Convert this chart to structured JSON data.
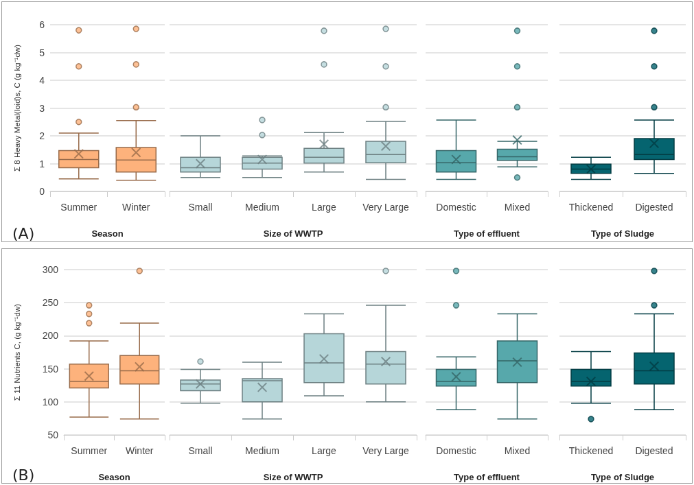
{
  "chart_data": [
    {
      "type": "box",
      "ylabel": "Σ 8 Heavy Metal(loid)s, C (g kg⁻¹dw)",
      "xlabel": "Season",
      "annotations": [
        "(A)"
      ],
      "categories": [
        "Summer",
        "Winter"
      ],
      "color": "#fdb27c",
      "ylim": [
        0,
        6
      ],
      "yticks": [
        0,
        1,
        2,
        3,
        4,
        5,
        6
      ],
      "grid": "y",
      "marker": "circle",
      "boxes": [
        {
          "low": 0.45,
          "q1": 0.85,
          "median": 1.15,
          "q3": 1.47,
          "high": 2.1,
          "mean": 1.35,
          "outliers": [
            2.5,
            4.5,
            5.8
          ]
        },
        {
          "low": 0.4,
          "q1": 0.7,
          "median": 1.13,
          "q3": 1.58,
          "high": 2.55,
          "mean": 1.4,
          "outliers": [
            3.03,
            4.57,
            5.85
          ]
        }
      ]
    },
    {
      "type": "box",
      "xlabel": "Size of WWTP",
      "categories": [
        "Small",
        "Medium",
        "Large",
        "Very Large"
      ],
      "color": "#b6d6d9",
      "ylim": [
        0,
        6
      ],
      "yticks": [
        0,
        1,
        2,
        3,
        4,
        5,
        6
      ],
      "grid": "y",
      "marker": "circle",
      "tick_labels": "x",
      "boxes": [
        {
          "low": 0.5,
          "q1": 0.7,
          "median": 0.85,
          "q3": 1.23,
          "high": 2.0,
          "mean": 1.0
        },
        {
          "low": 0.5,
          "q1": 0.8,
          "median": 1.02,
          "q3": 1.23,
          "high": 1.28,
          "mean": 1.15,
          "outliers": [
            2.03,
            2.57
          ]
        },
        {
          "low": 0.7,
          "q1": 1.02,
          "median": 1.23,
          "q3": 1.55,
          "high": 2.12,
          "mean": 1.7,
          "outliers": [
            4.57,
            5.78
          ]
        },
        {
          "low": 0.43,
          "q1": 1.03,
          "median": 1.33,
          "q3": 1.8,
          "high": 2.52,
          "mean": 1.63,
          "outliers": [
            3.03,
            4.5,
            5.85
          ]
        }
      ]
    },
    {
      "type": "box",
      "xlabel": "Type of effluent",
      "categories": [
        "Domestic",
        "Mixed"
      ],
      "color": "#57a8ab",
      "ylim": [
        0,
        6
      ],
      "yticks": [
        0,
        1,
        2,
        3,
        4,
        5,
        6
      ],
      "grid": "y",
      "marker": "circle",
      "tick_labels": "x",
      "boxes": [
        {
          "low": 0.43,
          "q1": 0.7,
          "median": 1.03,
          "q3": 1.47,
          "high": 2.57,
          "mean": 1.15
        },
        {
          "low": 0.88,
          "q1": 1.12,
          "median": 1.25,
          "q3": 1.52,
          "high": 1.8,
          "mean": 1.85,
          "outliers": [
            0.5,
            3.03,
            4.5,
            5.78
          ]
        }
      ]
    },
    {
      "type": "box",
      "xlabel": "Type of Sludge",
      "categories": [
        "Thickened",
        "Digested"
      ],
      "color": "#05646f",
      "ylim": [
        0,
        6
      ],
      "yticks": [
        0,
        1,
        2,
        3,
        4,
        5,
        6
      ],
      "grid": "y",
      "marker": "circle",
      "tick_labels": "x",
      "boxes": [
        {
          "low": 0.43,
          "q1": 0.65,
          "median": 0.8,
          "q3": 0.98,
          "high": 1.23,
          "mean": 0.8
        },
        {
          "low": 0.65,
          "q1": 1.15,
          "median": 1.33,
          "q3": 1.9,
          "high": 2.57,
          "mean": 1.73,
          "outliers": [
            3.03,
            4.5,
            5.78
          ]
        }
      ]
    },
    {
      "type": "box",
      "ylabel": "Σ 11 Nutrients C, (g kg⁻¹dw)",
      "xlabel": "Season",
      "annotations": [
        "(B)"
      ],
      "categories": [
        "Summer",
        "Winter"
      ],
      "color": "#fdb27c",
      "ylim": [
        50,
        300
      ],
      "yticks": [
        50,
        100,
        150,
        200,
        250,
        300
      ],
      "grid": "y",
      "marker": "circle",
      "boxes": [
        {
          "low": 77,
          "q1": 121,
          "median": 131,
          "q3": 157,
          "high": 192,
          "mean": 139,
          "outliers": [
            219,
            233,
            246
          ]
        },
        {
          "low": 74,
          "q1": 127,
          "median": 147,
          "q3": 170,
          "high": 219,
          "mean": 153,
          "outliers": [
            298
          ]
        }
      ]
    },
    {
      "type": "box",
      "xlabel": "Size of WWTP",
      "categories": [
        "Small",
        "Medium",
        "Large",
        "Very Large"
      ],
      "color": "#b6d6d9",
      "ylim": [
        50,
        300
      ],
      "yticks": [
        50,
        100,
        150,
        200,
        250,
        300
      ],
      "grid": "y",
      "marker": "circle",
      "tick_labels": "x",
      "boxes": [
        {
          "low": 98,
          "q1": 117,
          "median": 127,
          "q3": 133,
          "high": 149,
          "mean": 127,
          "outliers": [
            161
          ]
        },
        {
          "low": 74,
          "q1": 100,
          "median": 132,
          "q3": 135,
          "high": 160,
          "mean": 122
        },
        {
          "low": 109,
          "q1": 129,
          "median": 159,
          "q3": 203,
          "high": 233,
          "mean": 165
        },
        {
          "low": 100,
          "q1": 127,
          "median": 157,
          "q3": 176,
          "high": 246,
          "mean": 161,
          "outliers": [
            298
          ]
        }
      ]
    },
    {
      "type": "box",
      "xlabel": "Type of effluent",
      "categories": [
        "Domestic",
        "Mixed"
      ],
      "color": "#57a8ab",
      "ylim": [
        50,
        300
      ],
      "yticks": [
        50,
        100,
        150,
        200,
        250,
        300
      ],
      "grid": "y",
      "marker": "circle",
      "tick_labels": "x",
      "boxes": [
        {
          "low": 88,
          "q1": 124,
          "median": 131,
          "q3": 149,
          "high": 168,
          "mean": 138,
          "outliers": [
            246,
            298
          ]
        },
        {
          "low": 74,
          "q1": 129,
          "median": 162,
          "q3": 192,
          "high": 233,
          "mean": 160
        }
      ]
    },
    {
      "type": "box",
      "xlabel": "Type of Sludge",
      "categories": [
        "Thickened",
        "Digested"
      ],
      "color": "#05646f",
      "ylim": [
        50,
        300
      ],
      "yticks": [
        50,
        100,
        150,
        200,
        250,
        300
      ],
      "grid": "y",
      "marker": "circle",
      "tick_labels": "x",
      "boxes": [
        {
          "low": 98,
          "q1": 124,
          "median": 131,
          "q3": 149,
          "high": 176,
          "mean": 131,
          "outliers": [
            74
          ]
        },
        {
          "low": 88,
          "q1": 127,
          "median": 147,
          "q3": 174,
          "high": 233,
          "mean": 154,
          "outliers": [
            246,
            298
          ]
        }
      ]
    }
  ]
}
